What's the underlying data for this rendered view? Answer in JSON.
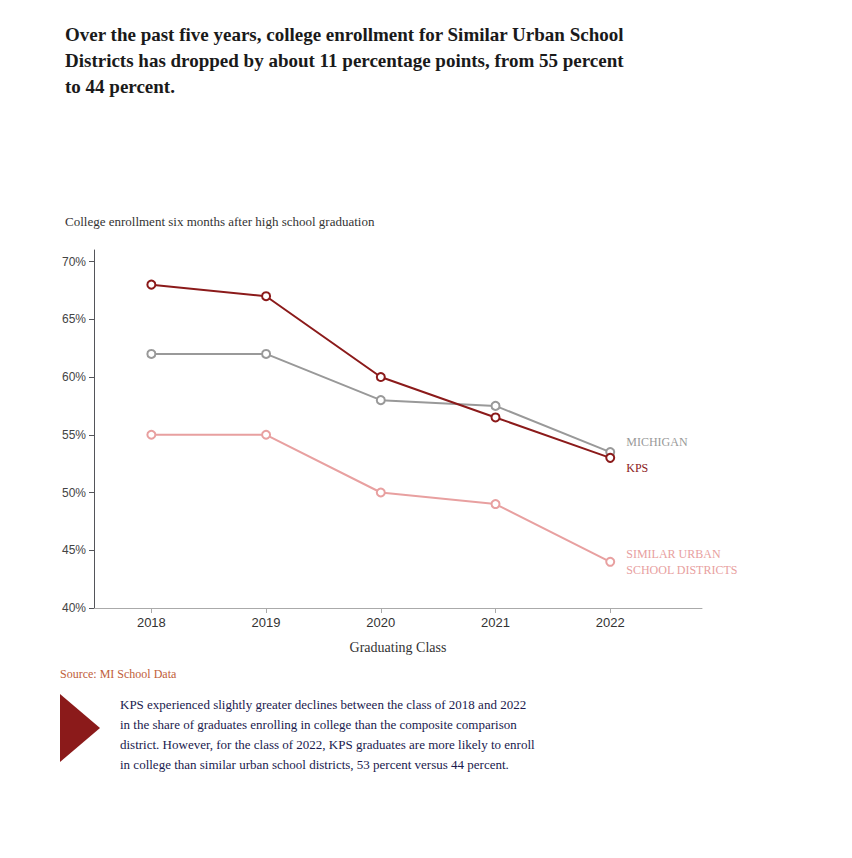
{
  "chart_data": {
    "type": "line",
    "title": "Over the past five years, college enrollment for Similar Urban School\nDistricts has dropped by about 11 percentage points, from 55 percent\nto 44 percent.",
    "subtitle": "College enrollment six months after high school graduation",
    "xlabel": "Graduating Class",
    "x": [
      2018,
      2019,
      2020,
      2021,
      2022
    ],
    "series": [
      {
        "name": "KPS",
        "color": "#8B1A1A",
        "values": [
          68,
          67,
          60,
          56.5,
          53
        ]
      },
      {
        "name": "MICHIGAN",
        "color": "#999999",
        "values": [
          62,
          62,
          58,
          57.5,
          53.5
        ]
      },
      {
        "name": "SIMILAR URBAN\nSCHOOL DISTRICTS",
        "color": "#E8A0A0",
        "values": [
          55,
          55,
          50,
          49,
          44
        ]
      }
    ],
    "xlim": [
      2017.5,
      2022.8
    ],
    "xticks": [
      2018,
      2019,
      2020,
      2021,
      2022
    ],
    "ylim": [
      40,
      71
    ],
    "yticks": [
      {
        "value": 40,
        "label": "40%"
      },
      {
        "value": 45,
        "label": "45%"
      },
      {
        "value": 50,
        "label": "50%"
      },
      {
        "value": 55,
        "label": "55%"
      },
      {
        "value": 60,
        "label": "60%"
      },
      {
        "value": 65,
        "label": "65%"
      },
      {
        "value": 70,
        "label": "70%"
      }
    ],
    "grid": false,
    "marker": "circle",
    "annotations": [
      "Source: MI School Data",
      "KPS experienced slightly greater declines between the class of 2018 and 2022\nin the share of graduates enrolling in college than the composite comparison\ndistrict. However, for the class of 2022, KPS graduates are more likely to enroll\nin college than similar urban school districts, 53 percent versus 44 percent."
    ]
  }
}
